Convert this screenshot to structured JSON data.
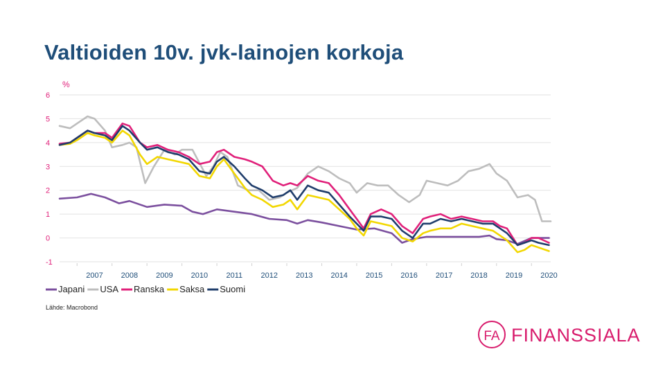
{
  "slide": {
    "title": "Valtioiden 10v. jvk-lainojen korkoja",
    "source": "Lähde: Macrobond",
    "logo_text": "FINANSSIALA",
    "logo_mark": "FA"
  },
  "chart_data": {
    "type": "line",
    "title": "Valtioiden 10v. jvk-lainojen korkoja",
    "ylabel": "%",
    "xlabel": "",
    "ylim": [
      -1,
      6
    ],
    "xlim": [
      2006.5,
      2020.55
    ],
    "yticks": [
      6,
      5,
      4,
      3,
      2,
      1,
      0,
      -1
    ],
    "xticks": [
      "2007",
      "2008",
      "2009",
      "2010",
      "2011",
      "2012",
      "2013",
      "2014",
      "2015",
      "2016",
      "2017",
      "2018",
      "2019",
      "2020"
    ],
    "grid": true,
    "legend_position": "bottom-left",
    "series": [
      {
        "name": "Japani",
        "color": "#7b4f9e",
        "x": [
          2006.5,
          2007.0,
          2007.4,
          2007.8,
          2008.2,
          2008.5,
          2009.0,
          2009.5,
          2010.0,
          2010.3,
          2010.6,
          2011.0,
          2011.5,
          2012.0,
          2012.5,
          2013.0,
          2013.3,
          2013.6,
          2014.0,
          2014.5,
          2015.0,
          2015.5,
          2016.0,
          2016.3,
          2016.6,
          2017.0,
          2017.5,
          2018.0,
          2018.5,
          2018.8,
          2019.0,
          2019.3,
          2019.6,
          2020.0,
          2020.5
        ],
        "values": [
          1.65,
          1.7,
          1.85,
          1.7,
          1.45,
          1.55,
          1.3,
          1.4,
          1.35,
          1.1,
          1.0,
          1.2,
          1.1,
          1.0,
          0.8,
          0.75,
          0.6,
          0.75,
          0.65,
          0.5,
          0.35,
          0.4,
          0.2,
          -0.2,
          -0.05,
          0.05,
          0.05,
          0.05,
          0.05,
          0.1,
          -0.05,
          -0.1,
          -0.25,
          0.0,
          0.0
        ]
      },
      {
        "name": "USA",
        "color": "#bdbdbd",
        "x": [
          2006.5,
          2006.8,
          2007.0,
          2007.3,
          2007.5,
          2007.8,
          2008.0,
          2008.3,
          2008.5,
          2008.7,
          2008.95,
          2009.2,
          2009.5,
          2009.8,
          2010.0,
          2010.3,
          2010.7,
          2010.9,
          2011.1,
          2011.3,
          2011.6,
          2011.9,
          2012.2,
          2012.5,
          2012.8,
          2013.0,
          2013.3,
          2013.6,
          2013.9,
          2014.2,
          2014.5,
          2014.8,
          2015.0,
          2015.3,
          2015.6,
          2015.9,
          2016.2,
          2016.5,
          2016.8,
          2017.0,
          2017.3,
          2017.6,
          2017.9,
          2018.2,
          2018.5,
          2018.8,
          2019.0,
          2019.3,
          2019.6,
          2019.9,
          2020.1,
          2020.3,
          2020.55
        ],
        "values": [
          4.7,
          4.6,
          4.8,
          5.1,
          5.0,
          4.5,
          3.8,
          3.9,
          4.0,
          3.8,
          2.3,
          3.0,
          3.7,
          3.5,
          3.7,
          3.7,
          2.6,
          3.0,
          3.6,
          3.4,
          2.2,
          2.0,
          2.0,
          1.6,
          1.7,
          1.9,
          2.1,
          2.7,
          3.0,
          2.8,
          2.5,
          2.3,
          1.9,
          2.3,
          2.2,
          2.2,
          1.8,
          1.5,
          1.8,
          2.4,
          2.3,
          2.2,
          2.4,
          2.8,
          2.9,
          3.1,
          2.7,
          2.4,
          1.7,
          1.8,
          1.6,
          0.7,
          0.7
        ]
      },
      {
        "name": "Ranska",
        "color": "#e0207a",
        "x": [
          2006.5,
          2006.8,
          2007.0,
          2007.3,
          2007.5,
          2007.8,
          2008.0,
          2008.3,
          2008.5,
          2008.8,
          2009.0,
          2009.3,
          2009.6,
          2009.9,
          2010.2,
          2010.5,
          2010.8,
          2011.0,
          2011.2,
          2011.5,
          2011.8,
          2012.0,
          2012.3,
          2012.6,
          2012.9,
          2013.1,
          2013.3,
          2013.6,
          2013.9,
          2014.2,
          2014.5,
          2014.8,
          2015.0,
          2015.2,
          2015.4,
          2015.7,
          2016.0,
          2016.3,
          2016.6,
          2016.9,
          2017.1,
          2017.4,
          2017.7,
          2018.0,
          2018.3,
          2018.6,
          2018.9,
          2019.1,
          2019.3,
          2019.6,
          2019.8,
          2020.0,
          2020.2,
          2020.5
        ],
        "values": [
          3.95,
          4.0,
          4.2,
          4.5,
          4.4,
          4.4,
          4.2,
          4.8,
          4.7,
          4.0,
          3.8,
          3.9,
          3.7,
          3.6,
          3.4,
          3.1,
          3.2,
          3.6,
          3.7,
          3.4,
          3.3,
          3.2,
          3.0,
          2.4,
          2.2,
          2.3,
          2.2,
          2.6,
          2.4,
          2.3,
          1.8,
          1.2,
          0.8,
          0.4,
          1.0,
          1.2,
          1.0,
          0.5,
          0.2,
          0.8,
          0.9,
          1.0,
          0.8,
          0.9,
          0.8,
          0.7,
          0.7,
          0.5,
          0.4,
          -0.3,
          -0.2,
          0.0,
          0.0,
          -0.2
        ]
      },
      {
        "name": "Saksa",
        "color": "#f2d700",
        "x": [
          2006.5,
          2006.8,
          2007.0,
          2007.3,
          2007.5,
          2007.8,
          2008.0,
          2008.3,
          2008.5,
          2008.8,
          2009.0,
          2009.3,
          2009.6,
          2009.9,
          2010.2,
          2010.5,
          2010.8,
          2011.0,
          2011.2,
          2011.5,
          2011.8,
          2012.0,
          2012.3,
          2012.6,
          2012.9,
          2013.1,
          2013.3,
          2013.6,
          2013.9,
          2014.2,
          2014.5,
          2014.8,
          2015.0,
          2015.2,
          2015.4,
          2015.7,
          2016.0,
          2016.3,
          2016.6,
          2016.9,
          2017.1,
          2017.4,
          2017.7,
          2018.0,
          2018.3,
          2018.6,
          2018.9,
          2019.1,
          2019.3,
          2019.6,
          2019.8,
          2020.0,
          2020.2,
          2020.5
        ],
        "values": [
          3.9,
          3.95,
          4.1,
          4.4,
          4.3,
          4.2,
          4.0,
          4.5,
          4.3,
          3.5,
          3.1,
          3.4,
          3.3,
          3.2,
          3.1,
          2.6,
          2.5,
          3.0,
          3.3,
          2.7,
          2.1,
          1.8,
          1.6,
          1.3,
          1.4,
          1.6,
          1.2,
          1.8,
          1.7,
          1.6,
          1.2,
          0.8,
          0.4,
          0.1,
          0.7,
          0.6,
          0.5,
          0.0,
          -0.15,
          0.2,
          0.3,
          0.4,
          0.4,
          0.6,
          0.5,
          0.4,
          0.3,
          0.1,
          -0.1,
          -0.6,
          -0.5,
          -0.3,
          -0.4,
          -0.55
        ]
      },
      {
        "name": "Suomi",
        "color": "#1f3d6b",
        "x": [
          2006.5,
          2006.8,
          2007.0,
          2007.3,
          2007.5,
          2007.8,
          2008.0,
          2008.3,
          2008.5,
          2008.8,
          2009.0,
          2009.3,
          2009.6,
          2009.9,
          2010.2,
          2010.5,
          2010.8,
          2011.0,
          2011.2,
          2011.5,
          2011.8,
          2012.0,
          2012.3,
          2012.6,
          2012.9,
          2013.1,
          2013.3,
          2013.6,
          2013.9,
          2014.2,
          2014.5,
          2014.8,
          2015.0,
          2015.2,
          2015.4,
          2015.7,
          2016.0,
          2016.3,
          2016.6,
          2016.9,
          2017.1,
          2017.4,
          2017.7,
          2018.0,
          2018.3,
          2018.6,
          2018.9,
          2019.1,
          2019.3,
          2019.6,
          2019.8,
          2020.0,
          2020.2,
          2020.5
        ],
        "values": [
          3.9,
          4.0,
          4.2,
          4.5,
          4.4,
          4.3,
          4.1,
          4.7,
          4.5,
          4.0,
          3.7,
          3.8,
          3.6,
          3.5,
          3.3,
          2.8,
          2.7,
          3.2,
          3.4,
          3.0,
          2.5,
          2.2,
          2.0,
          1.7,
          1.8,
          2.0,
          1.6,
          2.2,
          2.0,
          1.9,
          1.4,
          0.9,
          0.6,
          0.3,
          0.9,
          0.9,
          0.8,
          0.3,
          0.0,
          0.6,
          0.6,
          0.8,
          0.7,
          0.8,
          0.7,
          0.6,
          0.6,
          0.4,
          0.2,
          -0.3,
          -0.2,
          -0.1,
          -0.2,
          -0.3
        ]
      }
    ]
  }
}
